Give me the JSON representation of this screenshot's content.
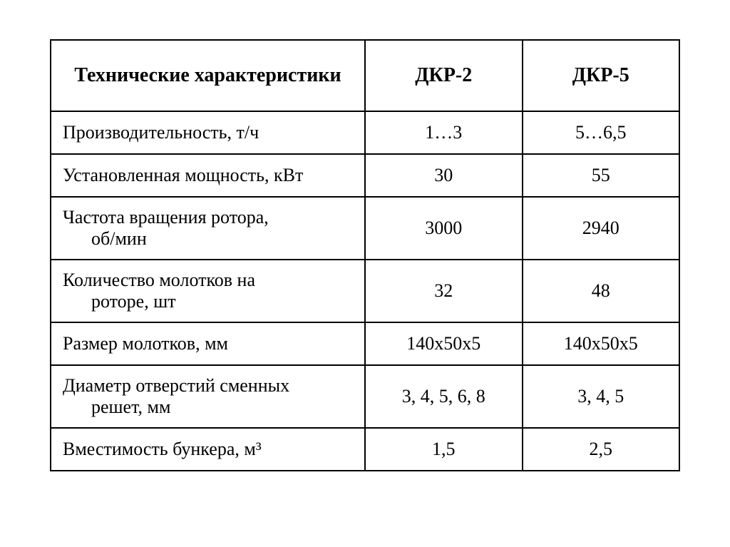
{
  "table": {
    "type": "table",
    "border_color": "#000000",
    "background_color": "#ffffff",
    "text_color": "#000000",
    "header_fontsize": 28,
    "body_fontsize": 26,
    "font_family": "Times New Roman",
    "columns": [
      {
        "label": "Технические характеристики",
        "width_pct": 50,
        "align": "left"
      },
      {
        "label": "ДКР-2",
        "width_pct": 25,
        "align": "center"
      },
      {
        "label": "ДКР-5",
        "width_pct": 25,
        "align": "center"
      }
    ],
    "rows": [
      {
        "label": "Производительность, т/ч",
        "label2": "",
        "v1": "1…3",
        "v2": "5…6,5",
        "tall": false
      },
      {
        "label": "Установленная мощность, кВт",
        "label2": "",
        "v1": "30",
        "v2": "55",
        "tall": false
      },
      {
        "label": "Частота вращения ротора,",
        "label2": "об/мин",
        "v1": "3000",
        "v2": "2940",
        "tall": true
      },
      {
        "label": "Количество молотков на",
        "label2": "роторе, шт",
        "v1": "32",
        "v2": "48",
        "tall": true
      },
      {
        "label": "Размер молотков, мм",
        "label2": "",
        "v1": "140х50х5",
        "v2": "140х50х5",
        "tall": false
      },
      {
        "label": "Диаметр отверстий сменных",
        "label2": "решет, мм",
        "v1": "3, 4, 5, 6, 8",
        "v2": "3, 4, 5",
        "tall": true
      },
      {
        "label": "Вместимость бункера, м³",
        "label2": "",
        "v1": "1,5",
        "v2": "2,5",
        "tall": false
      }
    ]
  }
}
